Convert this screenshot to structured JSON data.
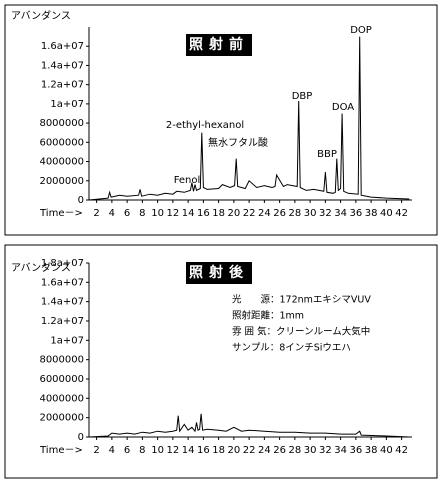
{
  "chart_data": [
    {
      "type": "line",
      "title": "照射前",
      "ylabel": "アバンダンス",
      "xlabel": "Time－>",
      "color": "#000000",
      "annotations": [
        "Fenol",
        "2-ethyl-hexanol",
        "無水フタル酸",
        "DBP",
        "BBP",
        "DOA",
        "DOP"
      ],
      "x": [
        1,
        3.5,
        3.7,
        3.9,
        5,
        6,
        7.5,
        7.7,
        7.9,
        9,
        10,
        11,
        12,
        12.5,
        13.5,
        14.3,
        14.5,
        14.7,
        14.9,
        15.1,
        15.6,
        15.8,
        16.0,
        16.5,
        18,
        18.5,
        19.5,
        20.1,
        20.3,
        20.5,
        21.5,
        22,
        23,
        24,
        25,
        25.4,
        25.6,
        26.5,
        27,
        28.3,
        28.5,
        28.7,
        29.5,
        30.5,
        31.8,
        32,
        32.2,
        33,
        33.3,
        33.5,
        33.7,
        34.0,
        34.2,
        34.4,
        35,
        36.3,
        36.5,
        36.7,
        38,
        40,
        43
      ],
      "values": [
        0,
        200000,
        800000,
        300000,
        500000,
        400000,
        500000,
        1100000,
        400000,
        600000,
        500000,
        700000,
        600000,
        900000,
        800000,
        1000000,
        1800000,
        900000,
        1600000,
        1000000,
        1200000,
        7000000,
        1300000,
        1100000,
        1200000,
        1600000,
        1300000,
        1500000,
        4300000,
        1400000,
        1200000,
        2000000,
        1300000,
        1500000,
        1300000,
        1400000,
        2600000,
        1400000,
        1600000,
        1400000,
        10300000,
        1300000,
        1000000,
        1100000,
        900000,
        2900000,
        800000,
        700000,
        800000,
        4300000,
        1000000,
        1200000,
        9000000,
        900000,
        700000,
        600000,
        17000000,
        500000,
        300000,
        200000,
        100000
      ],
      "xlim": [
        1,
        43.1
      ],
      "ylim": [
        0,
        18000000
      ],
      "xticks": [
        2,
        4,
        6,
        8,
        10,
        12,
        14,
        16,
        18,
        20,
        22,
        24,
        26,
        28,
        30,
        32,
        34,
        36,
        38,
        40,
        42
      ],
      "yticks": [
        0,
        2000000,
        4000000,
        6000000,
        8000000,
        {
          "value": 10000000,
          "label": "1a+07"
        },
        {
          "value": 12000000,
          "label": "1.2a+07"
        },
        {
          "value": 14000000,
          "label": "1.4a+07"
        },
        {
          "value": 16000000,
          "label": "1.6a+07"
        }
      ]
    },
    {
      "type": "line",
      "title": "照射後",
      "ylabel": "アバンダンス",
      "xlabel": "Time－>",
      "color": "#000000",
      "notes": [
        "光　　源：172nmエキシマVUV",
        "照射距離：1mm",
        "雰 囲 気：クリーンルーム大気中",
        "サンプル：8インチSiウエハ"
      ],
      "x": [
        1,
        3.5,
        4,
        5,
        6,
        7,
        8,
        9,
        10,
        11,
        12,
        12.5,
        12.7,
        12.9,
        13.5,
        14,
        14.5,
        14.9,
        15.1,
        15.3,
        15.5,
        15.7,
        15.9,
        16.5,
        18,
        19,
        20,
        21,
        22,
        24,
        26,
        28,
        30,
        32,
        34,
        36,
        36.5,
        36.7,
        40,
        43
      ],
      "values": [
        0,
        100000,
        400000,
        300000,
        400000,
        300000,
        500000,
        400000,
        600000,
        500000,
        600000,
        700000,
        2200000,
        600000,
        1300000,
        700000,
        1000000,
        600000,
        1500000,
        700000,
        800000,
        2400000,
        700000,
        800000,
        700000,
        600000,
        1000000,
        600000,
        700000,
        600000,
        500000,
        500000,
        400000,
        400000,
        300000,
        300000,
        600000,
        200000,
        100000,
        0
      ],
      "xlim": [
        1,
        43.1
      ],
      "ylim": [
        0,
        18000000
      ],
      "xticks": [
        2,
        4,
        6,
        8,
        10,
        12,
        14,
        16,
        18,
        20,
        22,
        24,
        26,
        28,
        30,
        32,
        34,
        36,
        38,
        40,
        42
      ],
      "yticks": [
        0,
        2000000,
        4000000,
        6000000,
        8000000,
        {
          "value": 10000000,
          "label": "1a+07"
        },
        {
          "value": 12000000,
          "label": "1.2a+07"
        },
        {
          "value": 14000000,
          "label": "1.4a+07"
        },
        {
          "value": 16000000,
          "label": "1.6a+07"
        },
        {
          "value": 18000000,
          "label": "1.8a+07"
        }
      ]
    }
  ]
}
